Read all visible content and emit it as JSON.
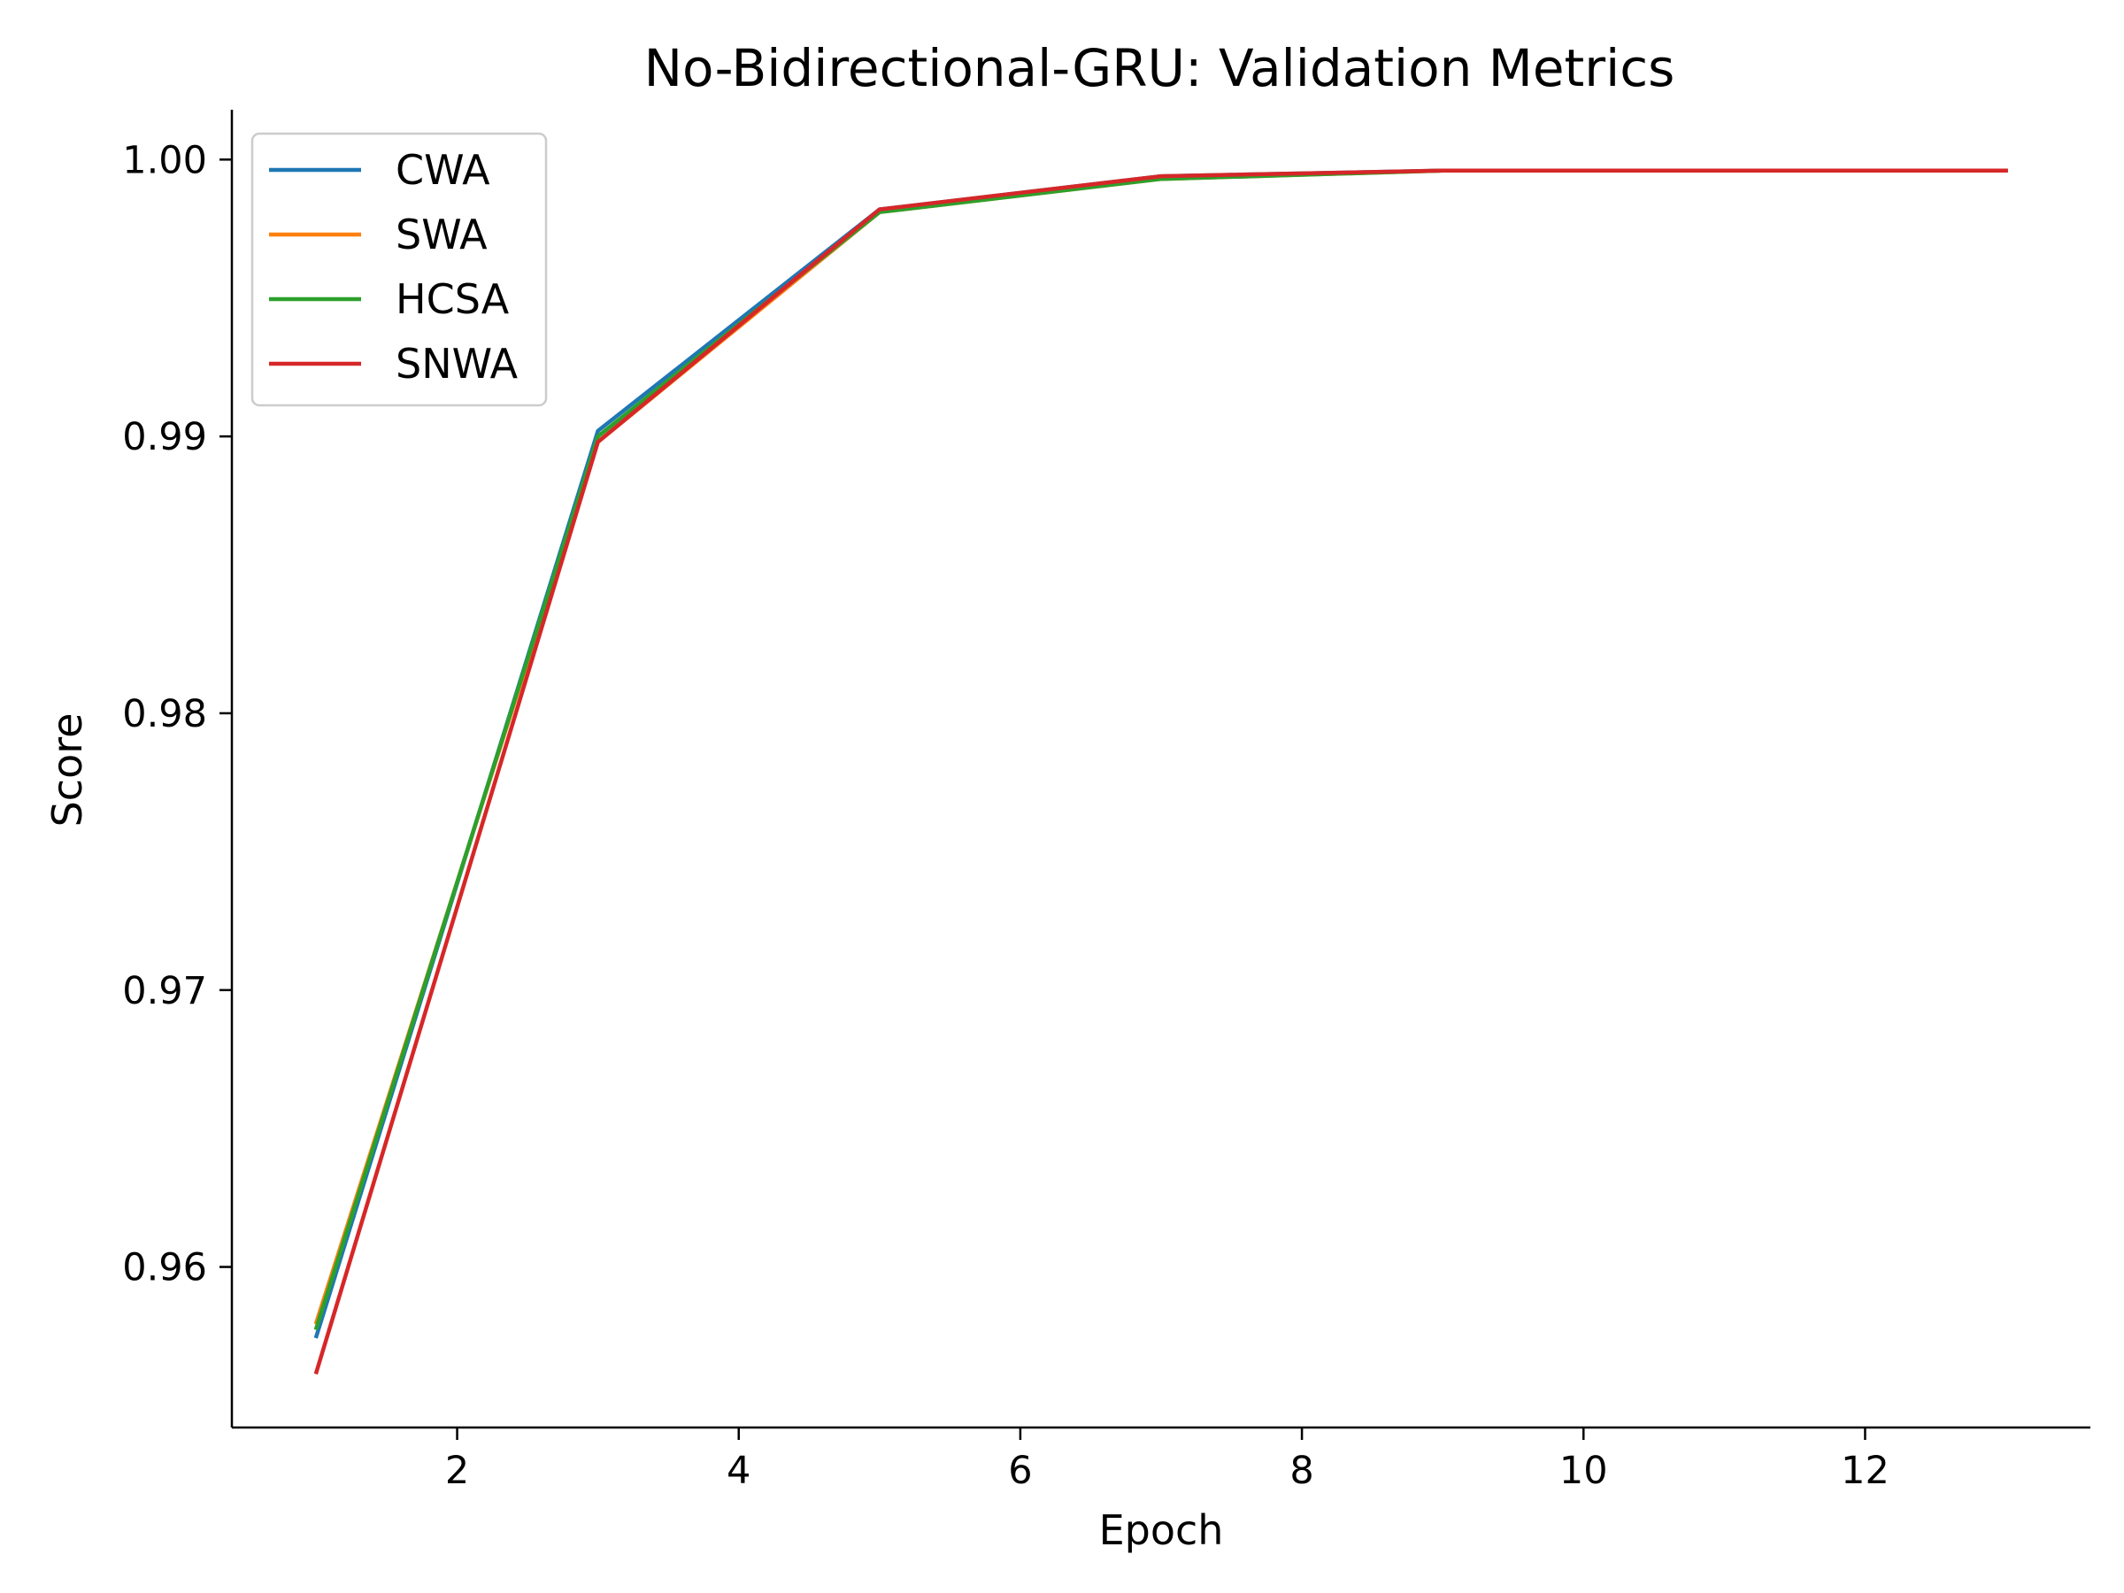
{
  "chart_data": {
    "type": "line",
    "title": "No-Bidirectional-GRU: Validation Metrics",
    "xlabel": "Epoch",
    "ylabel": "Score",
    "xlim": [
      0.4,
      13.6
    ],
    "ylim": [
      0.9542,
      1.0018
    ],
    "xticks": [
      2,
      4,
      6,
      8,
      10,
      12
    ],
    "xtick_labels": [
      "2",
      "4",
      "6",
      "8",
      "10",
      "12"
    ],
    "yticks": [
      0.96,
      0.97,
      0.98,
      0.99,
      1.0
    ],
    "ytick_labels": [
      "0.96",
      "0.97",
      "0.98",
      "0.99",
      "1.00"
    ],
    "grid": false,
    "legend_position": "top-left",
    "x": [
      1,
      3,
      5,
      7,
      9,
      11,
      13
    ],
    "series": [
      {
        "name": "CWA",
        "color": "#1f77b4",
        "values": [
          0.9575,
          0.9902,
          0.9982,
          0.9994,
          0.9996,
          0.9996,
          0.9996
        ]
      },
      {
        "name": "SWA",
        "color": "#ff7f0e",
        "values": [
          0.958,
          0.9898,
          0.9981,
          0.9993,
          0.9996,
          0.9996,
          0.9996
        ]
      },
      {
        "name": "HCSA",
        "color": "#2ca02c",
        "values": [
          0.9578,
          0.99,
          0.9981,
          0.9993,
          0.9996,
          0.9996,
          0.9996
        ]
      },
      {
        "name": "SNWA",
        "color": "#d62728",
        "values": [
          0.9562,
          0.9898,
          0.9982,
          0.9994,
          0.9996,
          0.9996,
          0.9996
        ]
      }
    ]
  }
}
